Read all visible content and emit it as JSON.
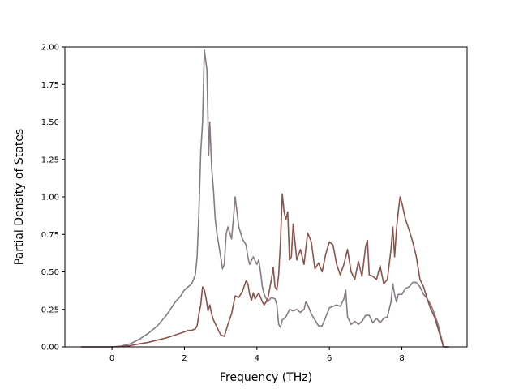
{
  "chart_data": {
    "type": "line",
    "title": "",
    "xlabel": "Frequency (THz)",
    "ylabel": "Partial Density of States",
    "xlim": [
      -1.3,
      9.8
    ],
    "ylim": [
      0.0,
      2.0
    ],
    "xticks": [
      "0",
      "2",
      "4",
      "6",
      "8"
    ],
    "yticks": [
      "0.00",
      "0.25",
      "0.50",
      "0.75",
      "1.00",
      "1.25",
      "1.50",
      "1.75",
      "2.00"
    ],
    "grid": false,
    "series": [
      {
        "color": "#867a85",
        "points": [
          [
            -0.85,
            0.0
          ],
          [
            0.0,
            0.0
          ],
          [
            0.25,
            0.005
          ],
          [
            0.5,
            0.02
          ],
          [
            0.75,
            0.05
          ],
          [
            1.0,
            0.09
          ],
          [
            1.25,
            0.14
          ],
          [
            1.5,
            0.21
          ],
          [
            1.75,
            0.3
          ],
          [
            1.9,
            0.34
          ],
          [
            2.0,
            0.38
          ],
          [
            2.2,
            0.42
          ],
          [
            2.3,
            0.48
          ],
          [
            2.35,
            0.6
          ],
          [
            2.4,
            0.9
          ],
          [
            2.45,
            1.3
          ],
          [
            2.5,
            1.5
          ],
          [
            2.55,
            1.98
          ],
          [
            2.62,
            1.85
          ],
          [
            2.67,
            1.28
          ],
          [
            2.7,
            1.5
          ],
          [
            2.75,
            1.2
          ],
          [
            2.8,
            1.05
          ],
          [
            2.85,
            0.85
          ],
          [
            2.9,
            0.75
          ],
          [
            3.0,
            0.6
          ],
          [
            3.05,
            0.52
          ],
          [
            3.1,
            0.55
          ],
          [
            3.15,
            0.75
          ],
          [
            3.2,
            0.8
          ],
          [
            3.3,
            0.72
          ],
          [
            3.35,
            0.85
          ],
          [
            3.4,
            1.0
          ],
          [
            3.45,
            0.9
          ],
          [
            3.5,
            0.8
          ],
          [
            3.6,
            0.72
          ],
          [
            3.7,
            0.68
          ],
          [
            3.75,
            0.6
          ],
          [
            3.8,
            0.55
          ],
          [
            3.9,
            0.6
          ],
          [
            4.0,
            0.55
          ],
          [
            4.05,
            0.58
          ],
          [
            4.1,
            0.5
          ],
          [
            4.15,
            0.4
          ],
          [
            4.2,
            0.35
          ],
          [
            4.3,
            0.3
          ],
          [
            4.4,
            0.33
          ],
          [
            4.5,
            0.32
          ],
          [
            4.55,
            0.28
          ],
          [
            4.6,
            0.15
          ],
          [
            4.65,
            0.13
          ],
          [
            4.7,
            0.18
          ],
          [
            4.8,
            0.2
          ],
          [
            4.9,
            0.25
          ],
          [
            5.0,
            0.24
          ],
          [
            5.1,
            0.25
          ],
          [
            5.2,
            0.23
          ],
          [
            5.3,
            0.25
          ],
          [
            5.35,
            0.3
          ],
          [
            5.4,
            0.28
          ],
          [
            5.5,
            0.22
          ],
          [
            5.6,
            0.18
          ],
          [
            5.7,
            0.14
          ],
          [
            5.8,
            0.14
          ],
          [
            5.9,
            0.2
          ],
          [
            6.0,
            0.26
          ],
          [
            6.1,
            0.27
          ],
          [
            6.2,
            0.28
          ],
          [
            6.3,
            0.27
          ],
          [
            6.4,
            0.32
          ],
          [
            6.45,
            0.38
          ],
          [
            6.5,
            0.2
          ],
          [
            6.6,
            0.15
          ],
          [
            6.7,
            0.17
          ],
          [
            6.8,
            0.15
          ],
          [
            6.9,
            0.17
          ],
          [
            7.0,
            0.21
          ],
          [
            7.1,
            0.21
          ],
          [
            7.2,
            0.16
          ],
          [
            7.3,
            0.19
          ],
          [
            7.4,
            0.16
          ],
          [
            7.5,
            0.19
          ],
          [
            7.6,
            0.2
          ],
          [
            7.7,
            0.3
          ],
          [
            7.75,
            0.42
          ],
          [
            7.8,
            0.35
          ],
          [
            7.85,
            0.3
          ],
          [
            7.9,
            0.35
          ],
          [
            8.0,
            0.35
          ],
          [
            8.1,
            0.39
          ],
          [
            8.2,
            0.4
          ],
          [
            8.3,
            0.43
          ],
          [
            8.4,
            0.43
          ],
          [
            8.5,
            0.4
          ],
          [
            8.6,
            0.35
          ],
          [
            8.7,
            0.32
          ],
          [
            8.8,
            0.28
          ],
          [
            8.9,
            0.22
          ],
          [
            9.0,
            0.15
          ],
          [
            9.1,
            0.05
          ],
          [
            9.15,
            0.0
          ],
          [
            9.3,
            0.0
          ]
        ]
      },
      {
        "color": "#8b534b",
        "points": [
          [
            -0.85,
            0.0
          ],
          [
            0.0,
            0.0
          ],
          [
            0.25,
            0.002
          ],
          [
            0.5,
            0.008
          ],
          [
            0.75,
            0.02
          ],
          [
            1.0,
            0.03
          ],
          [
            1.25,
            0.045
          ],
          [
            1.5,
            0.06
          ],
          [
            1.75,
            0.08
          ],
          [
            2.0,
            0.1
          ],
          [
            2.1,
            0.11
          ],
          [
            2.2,
            0.11
          ],
          [
            2.3,
            0.12
          ],
          [
            2.35,
            0.14
          ],
          [
            2.4,
            0.22
          ],
          [
            2.45,
            0.28
          ],
          [
            2.5,
            0.4
          ],
          [
            2.55,
            0.38
          ],
          [
            2.6,
            0.32
          ],
          [
            2.65,
            0.24
          ],
          [
            2.7,
            0.28
          ],
          [
            2.75,
            0.22
          ],
          [
            2.8,
            0.18
          ],
          [
            2.9,
            0.13
          ],
          [
            3.0,
            0.08
          ],
          [
            3.1,
            0.07
          ],
          [
            3.2,
            0.15
          ],
          [
            3.3,
            0.22
          ],
          [
            3.35,
            0.28
          ],
          [
            3.4,
            0.34
          ],
          [
            3.5,
            0.33
          ],
          [
            3.6,
            0.37
          ],
          [
            3.7,
            0.44
          ],
          [
            3.75,
            0.42
          ],
          [
            3.8,
            0.35
          ],
          [
            3.85,
            0.31
          ],
          [
            3.9,
            0.36
          ],
          [
            3.95,
            0.32
          ],
          [
            4.0,
            0.34
          ],
          [
            4.05,
            0.36
          ],
          [
            4.1,
            0.33
          ],
          [
            4.15,
            0.3
          ],
          [
            4.2,
            0.28
          ],
          [
            4.3,
            0.32
          ],
          [
            4.4,
            0.45
          ],
          [
            4.45,
            0.53
          ],
          [
            4.5,
            0.4
          ],
          [
            4.55,
            0.38
          ],
          [
            4.6,
            0.48
          ],
          [
            4.65,
            0.7
          ],
          [
            4.7,
            1.02
          ],
          [
            4.75,
            0.9
          ],
          [
            4.8,
            0.85
          ],
          [
            4.85,
            0.9
          ],
          [
            4.9,
            0.58
          ],
          [
            4.95,
            0.6
          ],
          [
            5.0,
            0.82
          ],
          [
            5.05,
            0.7
          ],
          [
            5.1,
            0.58
          ],
          [
            5.2,
            0.65
          ],
          [
            5.3,
            0.55
          ],
          [
            5.4,
            0.76
          ],
          [
            5.5,
            0.7
          ],
          [
            5.6,
            0.52
          ],
          [
            5.7,
            0.56
          ],
          [
            5.8,
            0.5
          ],
          [
            5.9,
            0.62
          ],
          [
            6.0,
            0.7
          ],
          [
            6.1,
            0.68
          ],
          [
            6.2,
            0.55
          ],
          [
            6.3,
            0.48
          ],
          [
            6.4,
            0.55
          ],
          [
            6.5,
            0.65
          ],
          [
            6.6,
            0.5
          ],
          [
            6.7,
            0.45
          ],
          [
            6.8,
            0.57
          ],
          [
            6.9,
            0.47
          ],
          [
            7.0,
            0.67
          ],
          [
            7.05,
            0.71
          ],
          [
            7.1,
            0.48
          ],
          [
            7.2,
            0.47
          ],
          [
            7.3,
            0.45
          ],
          [
            7.4,
            0.54
          ],
          [
            7.5,
            0.42
          ],
          [
            7.6,
            0.45
          ],
          [
            7.7,
            0.65
          ],
          [
            7.75,
            0.8
          ],
          [
            7.8,
            0.6
          ],
          [
            7.85,
            0.78
          ],
          [
            7.9,
            0.9
          ],
          [
            7.95,
            1.0
          ],
          [
            8.0,
            0.96
          ],
          [
            8.1,
            0.85
          ],
          [
            8.2,
            0.78
          ],
          [
            8.3,
            0.7
          ],
          [
            8.4,
            0.6
          ],
          [
            8.5,
            0.45
          ],
          [
            8.6,
            0.4
          ],
          [
            8.7,
            0.32
          ],
          [
            8.8,
            0.25
          ],
          [
            8.9,
            0.2
          ],
          [
            9.0,
            0.12
          ],
          [
            9.1,
            0.04
          ],
          [
            9.15,
            0.0
          ],
          [
            9.3,
            0.0
          ]
        ]
      }
    ]
  }
}
